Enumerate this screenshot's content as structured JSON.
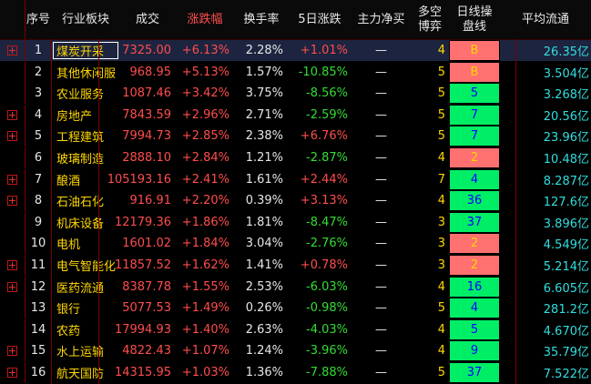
{
  "headers": [
    "序号",
    "行业板块",
    "成交",
    "涨跌幅",
    "换手率",
    "5日涨跌",
    "主力净买",
    "多空博弈",
    "日线操盘线",
    "平均流通"
  ],
  "header_lines": {
    "duokong": [
      "多空",
      "博弈"
    ],
    "rixian": [
      "日线操",
      "盘线"
    ]
  },
  "colors": {
    "up": "#ff4d4d",
    "down": "#33dd33",
    "name": "#ffd700",
    "signal_buy": "#ff7070",
    "signal_hold": "#00ee66"
  },
  "rows": [
    {
      "no": "1",
      "name": "煤炭开采",
      "price": "7325.00",
      "chg": "+6.13%",
      "turn": "2.28%",
      "d5": "+1.01%",
      "net": "—",
      "mk": "4",
      "day": "B",
      "day_style": "pink",
      "avg": "26.35亿",
      "exp": true,
      "price_up": true,
      "d5_up": true
    },
    {
      "no": "2",
      "name": "其他休闲服",
      "price": "968.95",
      "chg": "+5.13%",
      "turn": "1.57%",
      "d5": "-10.85%",
      "net": "—",
      "mk": "5",
      "day": "B",
      "day_style": "pink",
      "avg": "3.504亿",
      "exp": false,
      "price_up": true,
      "d5_up": false
    },
    {
      "no": "3",
      "name": "农业服务",
      "price": "1087.46",
      "chg": "+3.42%",
      "turn": "3.75%",
      "d5": "-8.56%",
      "net": "—",
      "mk": "5",
      "day": "5",
      "day_style": "green",
      "avg": "3.268亿",
      "exp": false,
      "price_up": true,
      "d5_up": false
    },
    {
      "no": "4",
      "name": "房地产",
      "price": "7843.59",
      "chg": "+2.96%",
      "turn": "2.71%",
      "d5": "-2.59%",
      "net": "—",
      "mk": "5",
      "day": "7",
      "day_style": "green",
      "avg": "20.56亿",
      "exp": true,
      "price_up": true,
      "d5_up": false
    },
    {
      "no": "5",
      "name": "工程建筑",
      "price": "7994.73",
      "chg": "+2.85%",
      "turn": "2.38%",
      "d5": "+6.76%",
      "net": "—",
      "mk": "5",
      "day": "7",
      "day_style": "green",
      "avg": "23.96亿",
      "exp": true,
      "price_up": true,
      "d5_up": true
    },
    {
      "no": "6",
      "name": "玻璃制造",
      "price": "2888.10",
      "chg": "+2.84%",
      "turn": "1.21%",
      "d5": "-2.87%",
      "net": "—",
      "mk": "4",
      "day": "2",
      "day_style": "pink",
      "avg": "10.48亿",
      "exp": false,
      "price_up": true,
      "d5_up": false
    },
    {
      "no": "7",
      "name": "酿酒",
      "price": "105193.16",
      "chg": "+2.41%",
      "turn": "1.61%",
      "d5": "+2.44%",
      "net": "—",
      "mk": "7",
      "day": "4",
      "day_style": "green",
      "avg": "8.287亿",
      "exp": true,
      "price_up": true,
      "d5_up": true
    },
    {
      "no": "8",
      "name": "石油石化",
      "price": "916.91",
      "chg": "+2.20%",
      "turn": "0.39%",
      "d5": "+3.13%",
      "net": "—",
      "mk": "4",
      "day": "36",
      "day_style": "green",
      "avg": "127.6亿",
      "exp": true,
      "price_up": true,
      "d5_up": true
    },
    {
      "no": "9",
      "name": "机床设备",
      "price": "12179.36",
      "chg": "+1.86%",
      "turn": "1.81%",
      "d5": "-8.47%",
      "net": "—",
      "mk": "3",
      "day": "37",
      "day_style": "green",
      "avg": "3.896亿",
      "exp": false,
      "price_up": true,
      "d5_up": false
    },
    {
      "no": "10",
      "name": "电机",
      "price": "1601.02",
      "chg": "+1.84%",
      "turn": "3.04%",
      "d5": "-2.76%",
      "net": "—",
      "mk": "3",
      "day": "2",
      "day_style": "pink",
      "avg": "4.549亿",
      "exp": false,
      "price_up": true,
      "d5_up": false
    },
    {
      "no": "11",
      "name": "电气智能化",
      "price": "11857.52",
      "chg": "+1.62%",
      "turn": "1.41%",
      "d5": "+0.78%",
      "net": "—",
      "mk": "3",
      "day": "2",
      "day_style": "pink",
      "avg": "5.214亿",
      "exp": true,
      "price_up": true,
      "d5_up": true
    },
    {
      "no": "12",
      "name": "医药流通",
      "price": "8387.78",
      "chg": "+1.55%",
      "turn": "2.53%",
      "d5": "-6.03%",
      "net": "—",
      "mk": "4",
      "day": "16",
      "day_style": "green",
      "avg": "6.605亿",
      "exp": true,
      "price_up": true,
      "d5_up": false
    },
    {
      "no": "13",
      "name": "银行",
      "price": "5077.53",
      "chg": "+1.49%",
      "turn": "0.26%",
      "d5": "-0.98%",
      "net": "—",
      "mk": "5",
      "day": "4",
      "day_style": "green",
      "avg": "281.2亿",
      "exp": false,
      "price_up": true,
      "d5_up": false
    },
    {
      "no": "14",
      "name": "农药",
      "price": "17994.93",
      "chg": "+1.40%",
      "turn": "2.63%",
      "d5": "-4.03%",
      "net": "—",
      "mk": "4",
      "day": "5",
      "day_style": "green",
      "avg": "4.670亿",
      "exp": false,
      "price_up": true,
      "d5_up": false
    },
    {
      "no": "15",
      "name": "水上运输",
      "price": "4822.43",
      "chg": "+1.07%",
      "turn": "1.24%",
      "d5": "-3.96%",
      "net": "—",
      "mk": "4",
      "day": "9",
      "day_style": "green",
      "avg": "35.79亿",
      "exp": true,
      "price_up": true,
      "d5_up": false
    },
    {
      "no": "16",
      "name": "航天国防",
      "price": "14315.95",
      "chg": "+1.03%",
      "turn": "1.36%",
      "d5": "-7.88%",
      "net": "—",
      "mk": "5",
      "day": "37",
      "day_style": "green",
      "avg": "7.522亿",
      "exp": true,
      "price_up": true,
      "d5_up": false
    }
  ]
}
